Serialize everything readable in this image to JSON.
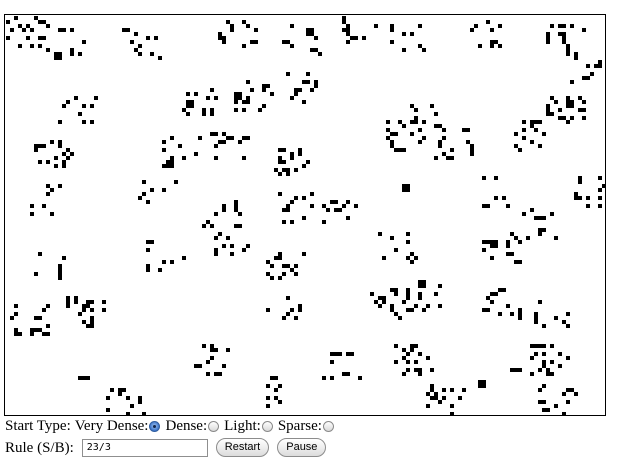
{
  "controls": {
    "start_type_label": "Start Type:",
    "options": [
      {
        "label": "Very Dense:",
        "checked": true
      },
      {
        "label": "Dense:",
        "checked": false
      },
      {
        "label": "Light:",
        "checked": false
      },
      {
        "label": "Sparse:",
        "checked": false
      }
    ],
    "rule_label": "Rule (S/B):",
    "rule_value": "23/3",
    "restart_label": "Restart",
    "pause_label": "Pause"
  },
  "colors": {
    "cell": "#000000",
    "background": "#ffffff"
  }
}
